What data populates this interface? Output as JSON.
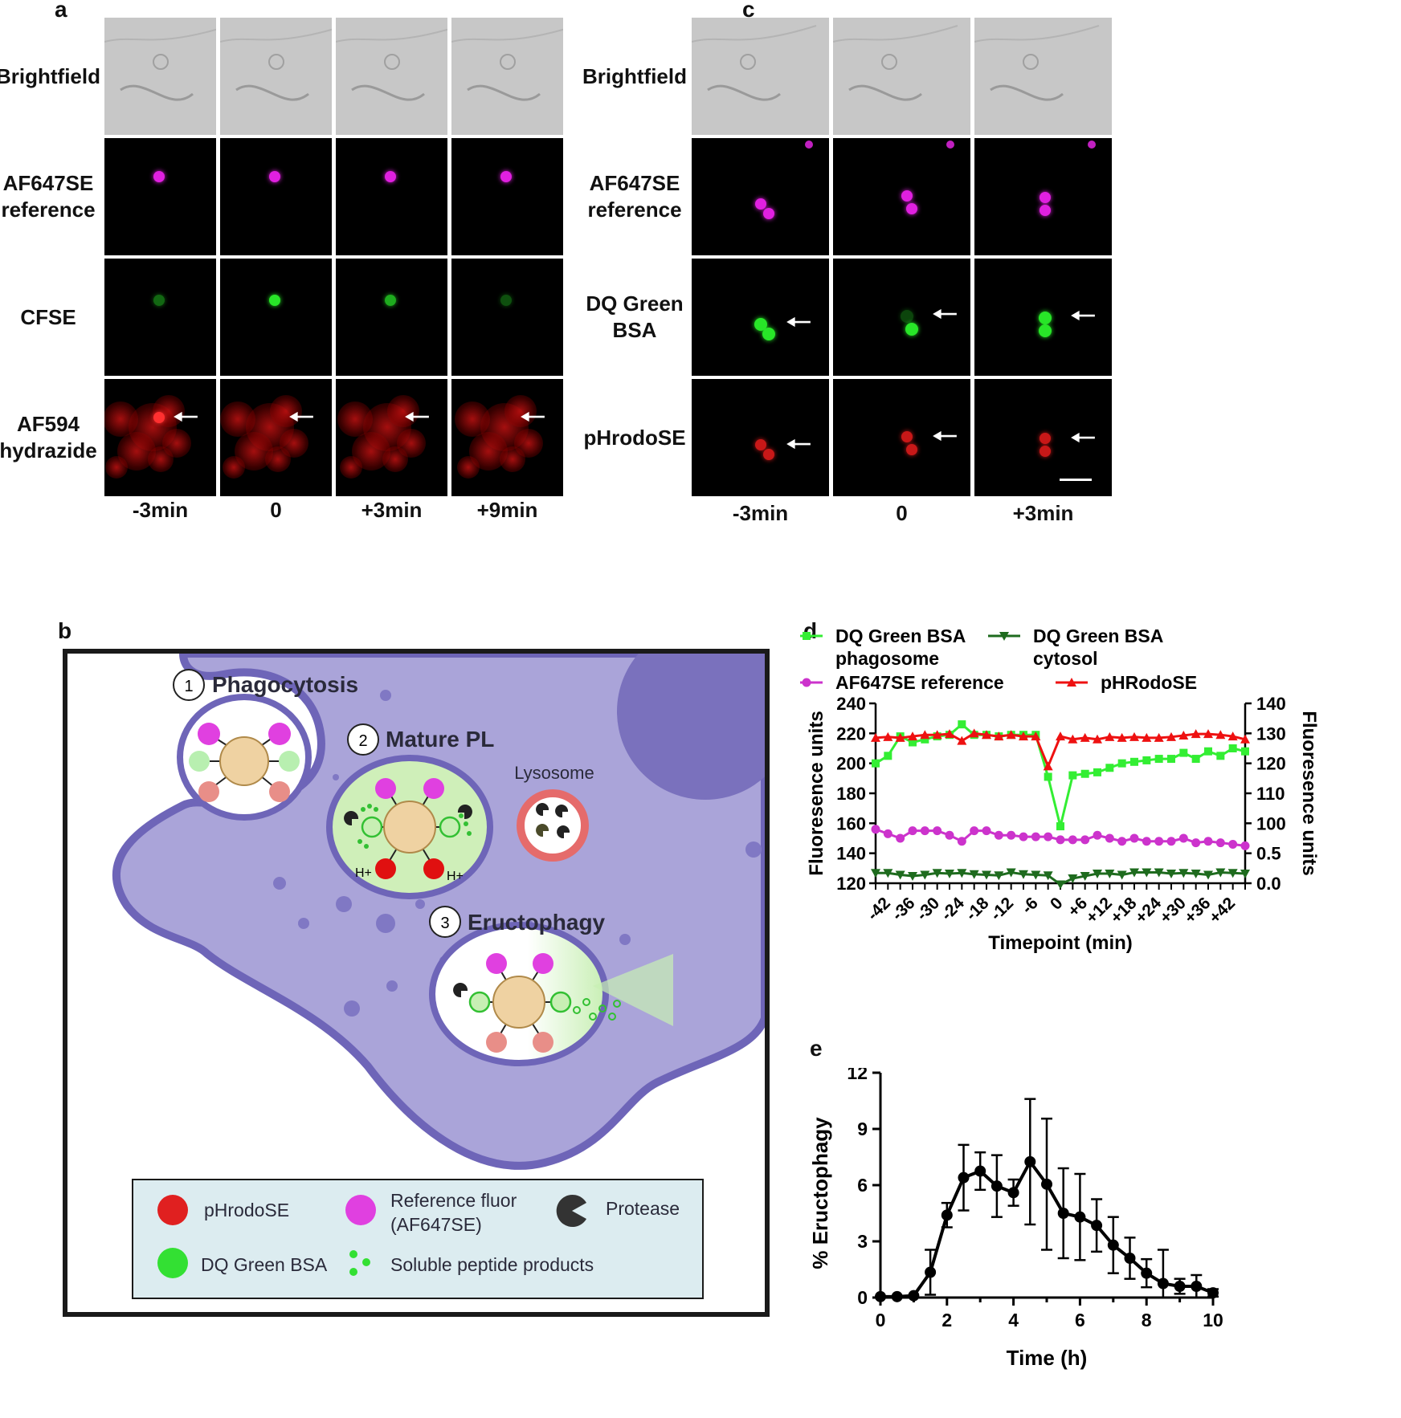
{
  "panel_a": {
    "letter": "a",
    "rows": [
      "Brightfield",
      "AF647SE reference",
      "CFSE",
      "AF594 hydrazide"
    ],
    "row_lines": [
      [
        "Brightfield"
      ],
      [
        "AF647SE",
        "reference"
      ],
      [
        "CFSE"
      ],
      [
        "AF594",
        "hydrazide"
      ]
    ],
    "timepoints": [
      "-3min",
      "0",
      "+3min",
      "+9min"
    ]
  },
  "panel_c": {
    "letter": "c",
    "rows": [
      "Brightfield",
      "AF647SE reference",
      "DQ Green BSA",
      "pHrodoSE"
    ],
    "row_lines": [
      [
        "Brightfield"
      ],
      [
        "AF647SE",
        "reference"
      ],
      [
        "DQ Green",
        "BSA"
      ],
      [
        "pHrodoSE"
      ]
    ],
    "timepoints": [
      "-3min",
      "0",
      "+3min"
    ]
  },
  "panel_b": {
    "letter": "b",
    "steps": [
      {
        "num": "1",
        "label": "Phagocytosis"
      },
      {
        "num": "2",
        "label": "Mature PL"
      },
      {
        "num": "3",
        "label": "Eructophagy"
      }
    ],
    "lysosome_label": "Lysosome",
    "proton_label": "H+",
    "legend": {
      "phrodo": "pHrodoSE",
      "reference": "Reference fluor (AF647SE)",
      "reference_line1": "Reference fluor",
      "reference_line2": "(AF647SE)",
      "protease": "Protease",
      "dq_green": "DQ Green BSA",
      "peptides": "Soluble peptide products"
    },
    "colors": {
      "cell": "#a9a2d9",
      "cell_border": "#6e65b8",
      "green": "#33e033",
      "magenta": "#e040e0",
      "red": "#e01010",
      "bead": "#efd2a2"
    }
  },
  "panel_d": {
    "letter": "d",
    "chart_data": {
      "type": "line",
      "xlabel": "Timepoint (min)",
      "ylabel_left": "Fluoresence units",
      "ylabel_right": "Fluoresence units",
      "ylim_left": [
        120,
        240
      ],
      "yticks_left": [
        120,
        140,
        160,
        180,
        200,
        220,
        240
      ],
      "ylim_right_upper": [
        100,
        140
      ],
      "yticks_right_upper": [
        100,
        110,
        120,
        130,
        140
      ],
      "yticks_right_lower": [
        0.0,
        0.5
      ],
      "xticks": [
        "-42",
        "-36",
        "-30",
        "-24",
        "-18",
        "-12",
        "-6",
        "0",
        "+6",
        "+12",
        "+18",
        "+24",
        "+30",
        "+36",
        "+42"
      ],
      "x": [
        -45,
        -42,
        -39,
        -36,
        -33,
        -30,
        -27,
        -24,
        -21,
        -18,
        -15,
        -12,
        -9,
        -6,
        -3,
        0,
        3,
        6,
        9,
        12,
        15,
        18,
        21,
        24,
        27,
        30,
        33,
        36,
        39,
        42,
        45
      ],
      "legend_position": "top",
      "series": [
        {
          "name": "DQ Green BSA phagosome",
          "legend_lines": [
            "DQ Green BSA",
            "phagosome"
          ],
          "color": "#33ee33",
          "marker": "square",
          "axis": "left",
          "values": [
            200,
            205,
            218,
            214,
            216,
            218,
            219,
            226,
            219,
            219,
            218,
            219,
            219,
            219,
            191,
            158,
            192,
            193,
            194,
            197,
            200,
            201,
            202,
            203,
            203,
            207,
            203,
            208,
            205,
            210,
            208
          ]
        },
        {
          "name": "DQ Green BSA cytosol",
          "legend_lines": [
            "DQ Green BSA",
            "cytosol"
          ],
          "color": "#1e6b1e",
          "marker": "triangle-down",
          "axis": "right-lower",
          "values": [
            0.17,
            0.17,
            0.14,
            0.12,
            0.14,
            0.17,
            0.16,
            0.17,
            0.15,
            0.14,
            0.13,
            0.18,
            0.15,
            0.14,
            0.13,
            -0.02,
            0.08,
            0.12,
            0.16,
            0.16,
            0.14,
            0.18,
            0.18,
            0.18,
            0.16,
            0.17,
            0.16,
            0.14,
            0.18,
            0.17,
            0.16
          ]
        },
        {
          "name": "AF647SE reference",
          "legend_lines": [
            "AF647SE reference"
          ],
          "color": "#cc33cc",
          "marker": "circle",
          "axis": "left",
          "values": [
            156,
            153,
            150,
            155,
            155,
            155,
            152,
            148,
            155,
            155,
            152,
            152,
            151,
            151,
            151,
            149,
            149,
            149,
            152,
            150,
            148,
            150,
            148,
            148,
            148,
            150,
            147,
            148,
            147,
            146,
            145
          ]
        },
        {
          "name": "pHRodoSE",
          "legend_lines": [
            "pHRodoSE"
          ],
          "color": "#ee1111",
          "marker": "triangle-up",
          "axis": "right-upper",
          "values": [
            128.5,
            128.8,
            128.5,
            129.0,
            129.5,
            129.5,
            129.8,
            127.5,
            130.0,
            129.5,
            129.0,
            129.5,
            129.0,
            129.0,
            119.0,
            129.0,
            128.0,
            128.5,
            128.0,
            128.8,
            128.5,
            128.8,
            128.5,
            128.5,
            128.8,
            129.3,
            129.8,
            129.8,
            129.5,
            129.0,
            128.0
          ]
        }
      ]
    }
  },
  "panel_e": {
    "letter": "e",
    "chart_data": {
      "type": "line",
      "xlabel": "Time (h)",
      "ylabel": "% Eructophagy",
      "xlim": [
        0,
        10
      ],
      "ylim": [
        0,
        12
      ],
      "xticks": [
        0,
        2,
        4,
        6,
        8,
        10
      ],
      "yticks": [
        0,
        3,
        6,
        9,
        12
      ],
      "color": "#000000",
      "series": [
        {
          "x": [
            0,
            0.5,
            1,
            1.5,
            2,
            2.5,
            3,
            3.5,
            4,
            4.5,
            5,
            5.5,
            6,
            6.5,
            7,
            7.5,
            8,
            8.5,
            9,
            9.5,
            10
          ],
          "values": [
            0.05,
            0.05,
            0.1,
            1.35,
            4.4,
            6.4,
            6.75,
            5.95,
            5.6,
            7.25,
            6.05,
            4.5,
            4.3,
            3.85,
            2.8,
            2.1,
            1.3,
            0.75,
            0.6,
            0.6,
            0.25
          ],
          "error": [
            0,
            0,
            0,
            1.2,
            0.65,
            1.75,
            1.0,
            1.65,
            0.7,
            3.35,
            3.5,
            2.4,
            2.3,
            1.4,
            1.5,
            1.1,
            0.75,
            1.8,
            0.4,
            0.6,
            0.2
          ]
        }
      ]
    }
  }
}
